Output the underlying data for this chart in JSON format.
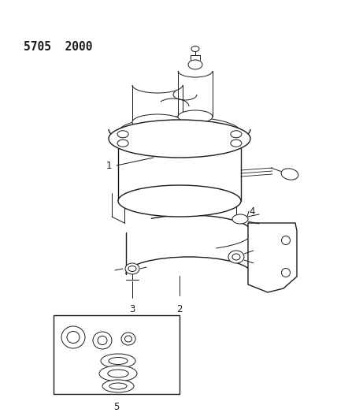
{
  "title_code": "5705  2000",
  "bg_color": "#ffffff",
  "line_color": "#1a1a1a",
  "figsize": [
    4.28,
    5.33
  ],
  "dpi": 100,
  "label_fontsize": 8.5,
  "title_fontsize": 10.5
}
